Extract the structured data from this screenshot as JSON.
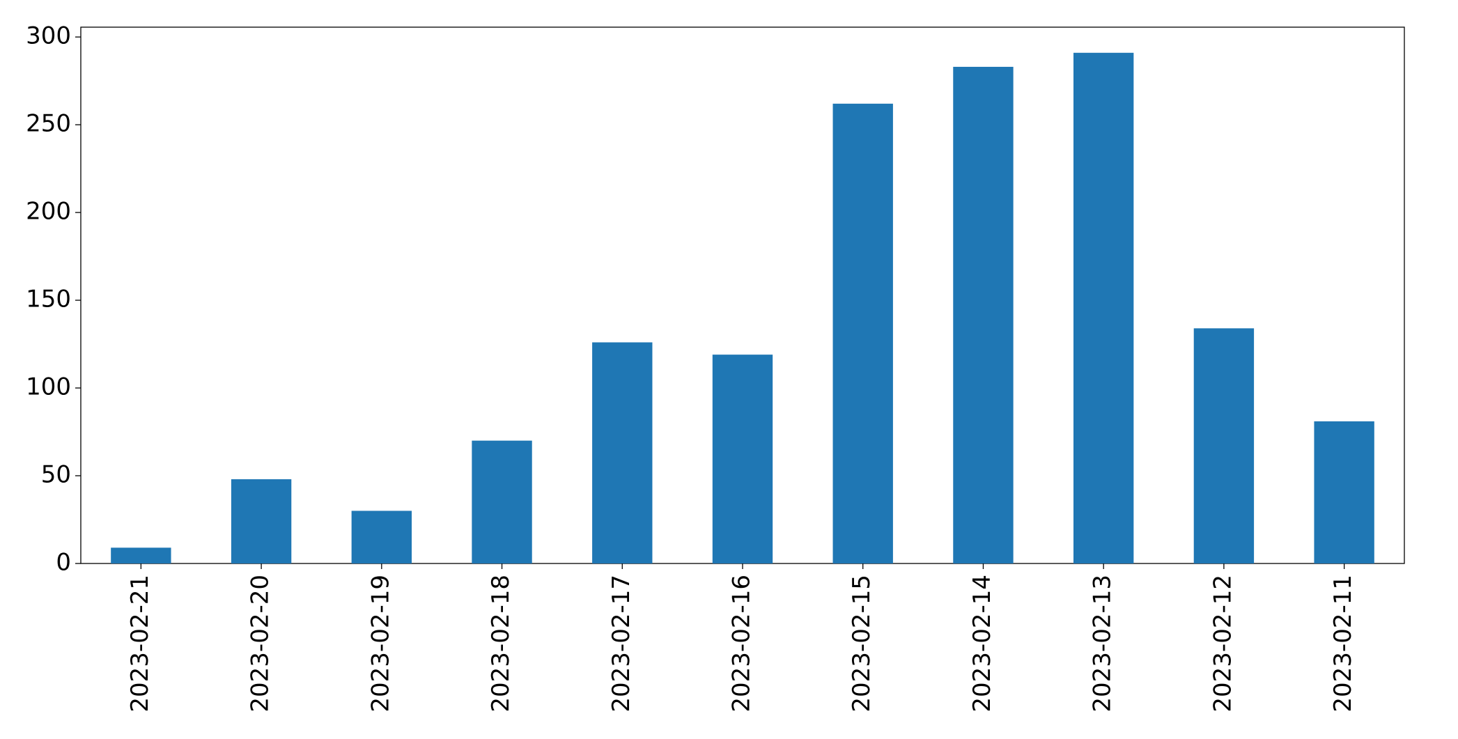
{
  "chart_data": {
    "type": "bar",
    "categories": [
      "2023-02-21",
      "2023-02-20",
      "2023-02-19",
      "2023-02-18",
      "2023-02-17",
      "2023-02-16",
      "2023-02-15",
      "2023-02-14",
      "2023-02-13",
      "2023-02-12",
      "2023-02-11"
    ],
    "values": [
      9,
      48,
      30,
      70,
      126,
      119,
      262,
      283,
      291,
      134,
      81
    ],
    "color": "#1f77b4",
    "ylim": [
      0,
      305.6
    ],
    "yticks": [
      0,
      50,
      100,
      150,
      200,
      250,
      300
    ],
    "grid": false
  }
}
